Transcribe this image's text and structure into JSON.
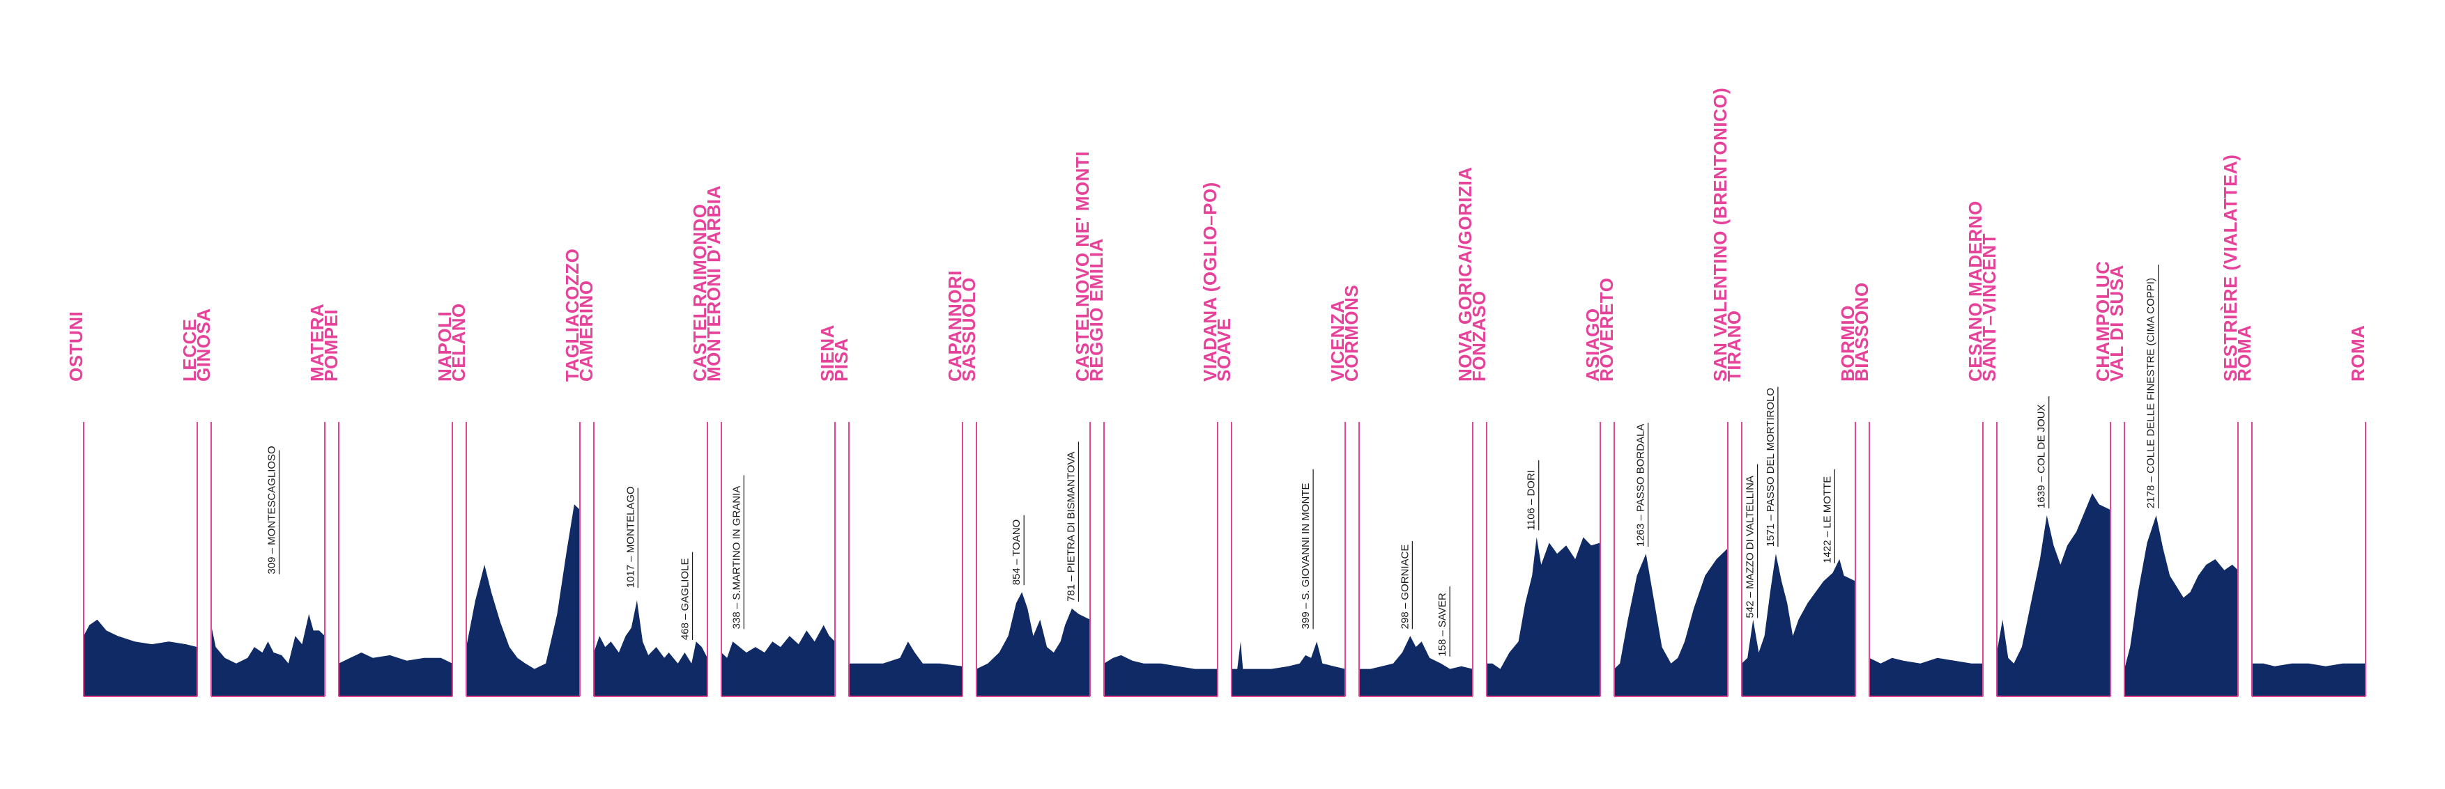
{
  "colors": {
    "profile": "#0f2a64",
    "accent": "#e6429a",
    "text": "#1a1a1a",
    "background": "#ffffff"
  },
  "chart_data": {
    "type": "area",
    "stages": [
      {
        "start": "OSTUNI",
        "finish": "LECCE",
        "profile": [
          [
            0,
            0.22
          ],
          [
            0.05,
            0.26
          ],
          [
            0.12,
            0.28
          ],
          [
            0.2,
            0.24
          ],
          [
            0.3,
            0.22
          ],
          [
            0.45,
            0.2
          ],
          [
            0.6,
            0.19
          ],
          [
            0.75,
            0.2
          ],
          [
            0.9,
            0.19
          ],
          [
            1,
            0.18
          ]
        ],
        "climbs": []
      },
      {
        "start": "GINOSA",
        "finish": "MATERA",
        "profile": [
          [
            0,
            0.26
          ],
          [
            0.04,
            0.18
          ],
          [
            0.12,
            0.14
          ],
          [
            0.22,
            0.12
          ],
          [
            0.32,
            0.14
          ],
          [
            0.38,
            0.18
          ],
          [
            0.45,
            0.16
          ],
          [
            0.5,
            0.2
          ],
          [
            0.55,
            0.16
          ],
          [
            0.62,
            0.15
          ],
          [
            0.68,
            0.12
          ],
          [
            0.74,
            0.22
          ],
          [
            0.8,
            0.19
          ],
          [
            0.86,
            0.3
          ],
          [
            0.9,
            0.24
          ],
          [
            0.95,
            0.24
          ],
          [
            1,
            0.22
          ]
        ],
        "climbs": [
          {
            "label": "309 – MONTESCAGLIOSO",
            "pos": 0.58,
            "peak": 0.42
          }
        ]
      },
      {
        "start": "POMPEI",
        "finish": "NAPOLI",
        "profile": [
          [
            0,
            0.12
          ],
          [
            0.1,
            0.14
          ],
          [
            0.2,
            0.16
          ],
          [
            0.3,
            0.14
          ],
          [
            0.45,
            0.15
          ],
          [
            0.6,
            0.13
          ],
          [
            0.75,
            0.14
          ],
          [
            0.9,
            0.14
          ],
          [
            1,
            0.12
          ]
        ],
        "climbs": []
      },
      {
        "start": "CELANO",
        "finish": "TAGLIACOZZO",
        "profile": [
          [
            0,
            0.18
          ],
          [
            0.08,
            0.35
          ],
          [
            0.16,
            0.48
          ],
          [
            0.22,
            0.38
          ],
          [
            0.3,
            0.27
          ],
          [
            0.38,
            0.18
          ],
          [
            0.45,
            0.14
          ],
          [
            0.52,
            0.12
          ],
          [
            0.6,
            0.1
          ],
          [
            0.7,
            0.12
          ],
          [
            0.8,
            0.3
          ],
          [
            0.88,
            0.52
          ],
          [
            0.95,
            0.7
          ],
          [
            1,
            0.68
          ]
        ],
        "climbs": []
      },
      {
        "start": "CAMERINO",
        "finish": "CASTELRAIMONDO",
        "profile": [
          [
            0,
            0.16
          ],
          [
            0.05,
            0.22
          ],
          [
            0.1,
            0.18
          ],
          [
            0.15,
            0.2
          ],
          [
            0.22,
            0.16
          ],
          [
            0.28,
            0.22
          ],
          [
            0.33,
            0.25
          ],
          [
            0.38,
            0.35
          ],
          [
            0.43,
            0.2
          ],
          [
            0.48,
            0.15
          ],
          [
            0.55,
            0.18
          ],
          [
            0.62,
            0.14
          ],
          [
            0.66,
            0.16
          ],
          [
            0.74,
            0.12
          ],
          [
            0.8,
            0.16
          ],
          [
            0.86,
            0.12
          ],
          [
            0.9,
            0.2
          ],
          [
            0.95,
            0.18
          ],
          [
            1,
            0.14
          ]
        ],
        "climbs": [
          {
            "label": "1017 – MONTELAGO",
            "pos": 0.37,
            "peak": 0.37
          },
          {
            "label": "468 – GAGLIOLE",
            "pos": 0.85,
            "peak": 0.18
          }
        ]
      },
      {
        "start": "MONTERONI D'ARBIA",
        "finish": "SIENA",
        "profile": [
          [
            0,
            0.16
          ],
          [
            0.05,
            0.14
          ],
          [
            0.1,
            0.2
          ],
          [
            0.16,
            0.18
          ],
          [
            0.22,
            0.16
          ],
          [
            0.3,
            0.18
          ],
          [
            0.38,
            0.16
          ],
          [
            0.45,
            0.2
          ],
          [
            0.52,
            0.18
          ],
          [
            0.6,
            0.22
          ],
          [
            0.68,
            0.19
          ],
          [
            0.75,
            0.24
          ],
          [
            0.82,
            0.2
          ],
          [
            0.9,
            0.26
          ],
          [
            0.95,
            0.22
          ],
          [
            1,
            0.2
          ]
        ],
        "climbs": [
          {
            "label": "338 – S.MARTINO IN GRANIA",
            "pos": 0.18,
            "peak": 0.22
          }
        ]
      },
      {
        "start": "PISA",
        "finish": "CAPANNORI",
        "profile": [
          [
            0,
            0.12
          ],
          [
            0.15,
            0.12
          ],
          [
            0.3,
            0.12
          ],
          [
            0.45,
            0.14
          ],
          [
            0.52,
            0.2
          ],
          [
            0.58,
            0.16
          ],
          [
            0.65,
            0.12
          ],
          [
            0.8,
            0.12
          ],
          [
            1,
            0.11
          ]
        ],
        "climbs": []
      },
      {
        "start": "SASSUOLO",
        "finish": "CASTELNOVO NE' MONTI",
        "profile": [
          [
            0,
            0.1
          ],
          [
            0.1,
            0.12
          ],
          [
            0.2,
            0.16
          ],
          [
            0.28,
            0.22
          ],
          [
            0.35,
            0.34
          ],
          [
            0.4,
            0.38
          ],
          [
            0.45,
            0.32
          ],
          [
            0.5,
            0.22
          ],
          [
            0.56,
            0.28
          ],
          [
            0.62,
            0.18
          ],
          [
            0.68,
            0.16
          ],
          [
            0.74,
            0.2
          ],
          [
            0.78,
            0.26
          ],
          [
            0.84,
            0.32
          ],
          [
            0.9,
            0.3
          ],
          [
            1,
            0.28
          ]
        ],
        "climbs": [
          {
            "label": "854 – TOANO",
            "pos": 0.4,
            "peak": 0.38
          },
          {
            "label": "781 – PIETRA DI BISMANTOVA",
            "pos": 0.88,
            "peak": 0.32
          }
        ]
      },
      {
        "start": "REGGIO EMILIA",
        "finish": "VIADANA (OGLIO–PO)",
        "profile": [
          [
            0,
            0.12
          ],
          [
            0.08,
            0.14
          ],
          [
            0.15,
            0.15
          ],
          [
            0.25,
            0.13
          ],
          [
            0.35,
            0.12
          ],
          [
            0.5,
            0.12
          ],
          [
            0.65,
            0.11
          ],
          [
            0.8,
            0.1
          ],
          [
            1,
            0.1
          ]
        ],
        "climbs": []
      },
      {
        "start": "SOAVE",
        "finish": "VICENZA",
        "profile": [
          [
            0,
            0.1
          ],
          [
            0.05,
            0.1
          ],
          [
            0.08,
            0.2
          ],
          [
            0.1,
            0.1
          ],
          [
            0.2,
            0.1
          ],
          [
            0.35,
            0.1
          ],
          [
            0.5,
            0.11
          ],
          [
            0.6,
            0.12
          ],
          [
            0.65,
            0.15
          ],
          [
            0.7,
            0.14
          ],
          [
            0.75,
            0.2
          ],
          [
            0.8,
            0.12
          ],
          [
            0.9,
            0.11
          ],
          [
            1,
            0.1
          ]
        ],
        "climbs": [
          {
            "label": "399 – S. GIOVANNI IN MONTE",
            "pos": 0.7,
            "peak": 0.22
          }
        ]
      },
      {
        "start": "CORMONS",
        "finish": "NOVA GORICA/GORIZIA",
        "profile": [
          [
            0,
            0.1
          ],
          [
            0.1,
            0.1
          ],
          [
            0.2,
            0.11
          ],
          [
            0.3,
            0.12
          ],
          [
            0.38,
            0.16
          ],
          [
            0.45,
            0.22
          ],
          [
            0.5,
            0.18
          ],
          [
            0.55,
            0.2
          ],
          [
            0.62,
            0.14
          ],
          [
            0.72,
            0.12
          ],
          [
            0.8,
            0.1
          ],
          [
            0.9,
            0.11
          ],
          [
            1,
            0.1
          ]
        ],
        "climbs": [
          {
            "label": "298 – GORNIACE",
            "pos": 0.45,
            "peak": 0.22
          },
          {
            "label": "158 – SAVER",
            "pos": 0.78,
            "peak": 0.12
          }
        ]
      },
      {
        "start": "FONZASO",
        "finish": "ASIAGO",
        "profile": [
          [
            0,
            0.12
          ],
          [
            0.05,
            0.12
          ],
          [
            0.12,
            0.1
          ],
          [
            0.2,
            0.16
          ],
          [
            0.28,
            0.2
          ],
          [
            0.34,
            0.34
          ],
          [
            0.4,
            0.44
          ],
          [
            0.44,
            0.58
          ],
          [
            0.48,
            0.48
          ],
          [
            0.55,
            0.56
          ],
          [
            0.62,
            0.52
          ],
          [
            0.7,
            0.55
          ],
          [
            0.78,
            0.5
          ],
          [
            0.85,
            0.58
          ],
          [
            0.92,
            0.55
          ],
          [
            1,
            0.56
          ]
        ],
        "climbs": [
          {
            "label": "1106 – DORI",
            "pos": 0.44,
            "peak": 0.58
          }
        ]
      },
      {
        "start": "ROVERETO",
        "finish": "SAN VALENTINO (BRENTONICO)",
        "profile": [
          [
            0,
            0.1
          ],
          [
            0.05,
            0.12
          ],
          [
            0.12,
            0.28
          ],
          [
            0.2,
            0.44
          ],
          [
            0.28,
            0.52
          ],
          [
            0.35,
            0.35
          ],
          [
            0.42,
            0.18
          ],
          [
            0.5,
            0.12
          ],
          [
            0.56,
            0.14
          ],
          [
            0.62,
            0.2
          ],
          [
            0.7,
            0.32
          ],
          [
            0.8,
            0.44
          ],
          [
            0.9,
            0.5
          ],
          [
            1,
            0.54
          ]
        ],
        "climbs": [
          {
            "label": "1263 – PASSO BORDALA",
            "pos": 0.28,
            "peak": 0.52
          }
        ]
      },
      {
        "start": "TIRANO",
        "finish": "BORMIO",
        "profile": [
          [
            0,
            0.12
          ],
          [
            0.05,
            0.14
          ],
          [
            0.1,
            0.28
          ],
          [
            0.15,
            0.16
          ],
          [
            0.2,
            0.22
          ],
          [
            0.25,
            0.38
          ],
          [
            0.3,
            0.52
          ],
          [
            0.35,
            0.42
          ],
          [
            0.4,
            0.34
          ],
          [
            0.45,
            0.22
          ],
          [
            0.5,
            0.28
          ],
          [
            0.58,
            0.34
          ],
          [
            0.65,
            0.38
          ],
          [
            0.72,
            0.42
          ],
          [
            0.8,
            0.45
          ],
          [
            0.86,
            0.5
          ],
          [
            0.9,
            0.44
          ],
          [
            1,
            0.42
          ]
        ],
        "climbs": [
          {
            "label": "542 – MAZZO DI VALTELLINA",
            "pos": 0.12,
            "peak": 0.26
          },
          {
            "label": "1571 – PASSO DEL MORTIROLO",
            "pos": 0.3,
            "peak": 0.52
          },
          {
            "label": "1422 – LE MOTTE",
            "pos": 0.8,
            "peak": 0.46
          }
        ]
      },
      {
        "start": "BIASSONO",
        "finish": "CESANO MADERNO",
        "profile": [
          [
            0,
            0.14
          ],
          [
            0.1,
            0.12
          ],
          [
            0.2,
            0.14
          ],
          [
            0.3,
            0.13
          ],
          [
            0.45,
            0.12
          ],
          [
            0.6,
            0.14
          ],
          [
            0.75,
            0.13
          ],
          [
            0.9,
            0.12
          ],
          [
            1,
            0.12
          ]
        ],
        "climbs": []
      },
      {
        "start": "SAINT–VINCENT",
        "finish": "CHAMPOLUC",
        "profile": [
          [
            0,
            0.16
          ],
          [
            0.05,
            0.28
          ],
          [
            0.1,
            0.14
          ],
          [
            0.15,
            0.12
          ],
          [
            0.22,
            0.18
          ],
          [
            0.3,
            0.34
          ],
          [
            0.38,
            0.5
          ],
          [
            0.44,
            0.66
          ],
          [
            0.5,
            0.55
          ],
          [
            0.56,
            0.48
          ],
          [
            0.62,
            0.55
          ],
          [
            0.7,
            0.6
          ],
          [
            0.78,
            0.68
          ],
          [
            0.84,
            0.74
          ],
          [
            0.9,
            0.7
          ],
          [
            1,
            0.68
          ]
        ],
        "climbs": [
          {
            "label": "1639 – COL DE JOUX",
            "pos": 0.44,
            "peak": 0.66
          }
        ]
      },
      {
        "start": "VAL DI SUSA",
        "finish": "SESTRIÈRE (VIALATTEA)",
        "profile": [
          [
            0,
            0.1
          ],
          [
            0.05,
            0.18
          ],
          [
            0.12,
            0.38
          ],
          [
            0.2,
            0.56
          ],
          [
            0.28,
            0.66
          ],
          [
            0.34,
            0.54
          ],
          [
            0.4,
            0.44
          ],
          [
            0.46,
            0.4
          ],
          [
            0.52,
            0.36
          ],
          [
            0.58,
            0.38
          ],
          [
            0.65,
            0.44
          ],
          [
            0.72,
            0.48
          ],
          [
            0.8,
            0.5
          ],
          [
            0.88,
            0.46
          ],
          [
            0.95,
            0.48
          ],
          [
            1,
            0.46
          ]
        ],
        "climbs": [
          {
            "label": "2178 – COLLE DELLE FINESTRE (CIMA COPPI)",
            "pos": 0.28,
            "peak": 0.66
          }
        ]
      },
      {
        "start": "ROMA",
        "finish": "ROMA",
        "profile": [
          [
            0,
            0.12
          ],
          [
            0.1,
            0.12
          ],
          [
            0.2,
            0.11
          ],
          [
            0.35,
            0.12
          ],
          [
            0.5,
            0.12
          ],
          [
            0.65,
            0.11
          ],
          [
            0.8,
            0.12
          ],
          [
            1,
            0.12
          ]
        ],
        "climbs": []
      }
    ]
  }
}
